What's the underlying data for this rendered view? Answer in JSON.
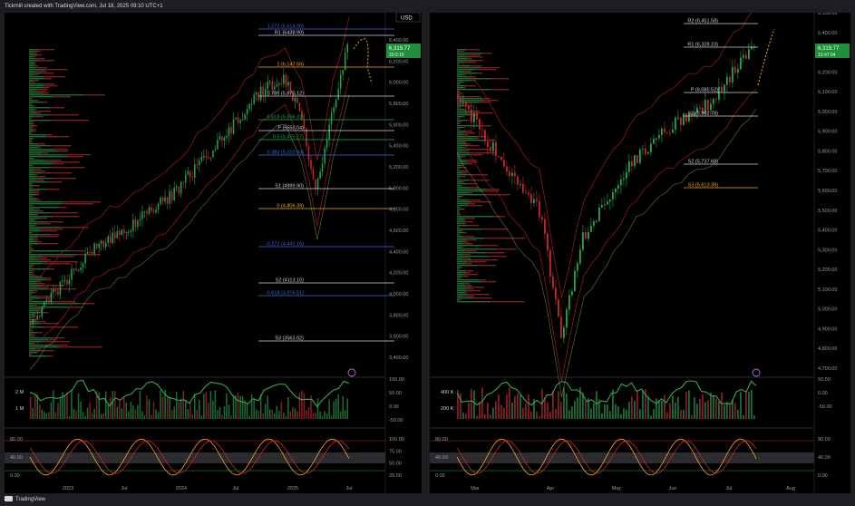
{
  "header": {
    "attribution": "Tickmill created with TradingView.com, Jul 18, 2025 09:10 UTC+1"
  },
  "footer": {
    "brand": "TradingView"
  },
  "colors": {
    "bull": "#22a84a",
    "bear": "#c8262d",
    "fib": "#3a6bd6",
    "bband": "#8a1a1a",
    "envelope": "#9aa84a",
    "price_badge": "#1f8f3a",
    "pivot_line": "#ffffff",
    "projection": "#f5a623"
  },
  "left": {
    "currency": "USD",
    "price_badge": "6,319.77",
    "price_badge_sub": "20:2:15",
    "price_axis": [
      "6,400.00",
      "6,200.00",
      "6,000.00",
      "5,800.00",
      "5,600.00",
      "5,400.00",
      "5,200.00",
      "5,000.00",
      "4,800.00",
      "4,600.00",
      "4,400.00",
      "4,200.00",
      "4,000.00",
      "3,800.00",
      "3,600.00",
      "3,400.00"
    ],
    "time_axis": [
      "2023",
      "Jul",
      "2024",
      "Jul",
      "2025",
      "Jul"
    ],
    "levels": [
      {
        "text": "1.272 (6,614.90)",
        "color": "#3a6bd6"
      },
      {
        "text": "R1 (6438.90)",
        "color": "#cfcfd4"
      },
      {
        "text": "1 (6,147.56)",
        "color": "#f5a623"
      },
      {
        "text": "0.786 (5,870.12)",
        "color": "#cfcfd4"
      },
      {
        "text": "0.618 (5,636.32)",
        "color": "#22a84a"
      },
      {
        "text": "P (5550.04)",
        "color": "#cfcfd4"
      },
      {
        "text": "0.5 (5,475.27)",
        "color": "#22a84a"
      },
      {
        "text": "0.382 (5,310.93)",
        "color": "#3a6bd6"
      },
      {
        "text": "S1 (4999.90)",
        "color": "#cfcfd4"
      },
      {
        "text": "0 (4,806.39)",
        "color": "#f5a623"
      },
      {
        "text": "-0.272 (4,441.16)",
        "color": "#3a6bd6"
      },
      {
        "text": "S2 (4113.10)",
        "color": "#cfcfd4"
      },
      {
        "text": "-0.618 (3,976.51)",
        "color": "#3a6bd6"
      },
      {
        "text": "S3 (3563.02)",
        "color": "#cfcfd4"
      }
    ],
    "volume_axis_left": [
      "2 M",
      "1 M"
    ],
    "volume_axis_right": [
      "100.00",
      "50.00",
      "0.00",
      "-50.00"
    ],
    "osc_axis_left": [
      "80.00",
      "40.00",
      "0.00"
    ],
    "osc_axis_right": [
      "100.00",
      "75.00",
      "50.00",
      "25.00"
    ]
  },
  "right": {
    "price_badge": "6,319.77",
    "price_badge_sub": "13:47:04",
    "price_axis": [
      "6,500.00",
      "6,400.00",
      "6,300.00",
      "6,200.00",
      "6,100.00",
      "6,000.00",
      "5,900.00",
      "5,800.00",
      "5,700.00",
      "5,600.00",
      "5,500.00",
      "5,400.00",
      "5,300.00",
      "5,200.00",
      "5,100.00",
      "5,000.00",
      "4,900.00",
      "4,800.00",
      "4,700.00"
    ],
    "time_axis": [
      "Mar",
      "Apr",
      "May",
      "Jun",
      "Jul",
      "Aug"
    ],
    "levels": [
      {
        "text": "R2 (6,451.58)",
        "color": "#cfcfd4"
      },
      {
        "text": "R1 (6,328.23)",
        "color": "#cfcfd4"
      },
      {
        "text": "P (6,085.52)",
        "color": "#cfcfd4"
      },
      {
        "text": "S1 (5,962.78)",
        "color": "#cfcfd4"
      },
      {
        "text": "S2 (5,737.68)",
        "color": "#cfcfd4"
      },
      {
        "text": "S3 (5,613.39)",
        "color": "#f5a623"
      }
    ],
    "volume_axis_left": [
      "400 K",
      "200 K"
    ],
    "volume_axis_right": [
      "50.00",
      "0.00",
      "-50.00"
    ],
    "osc_axis_right": [
      "80.00",
      "40.00",
      "0.00"
    ],
    "osc_axis_left": [
      "80.00",
      "40.00",
      "0.00"
    ]
  }
}
